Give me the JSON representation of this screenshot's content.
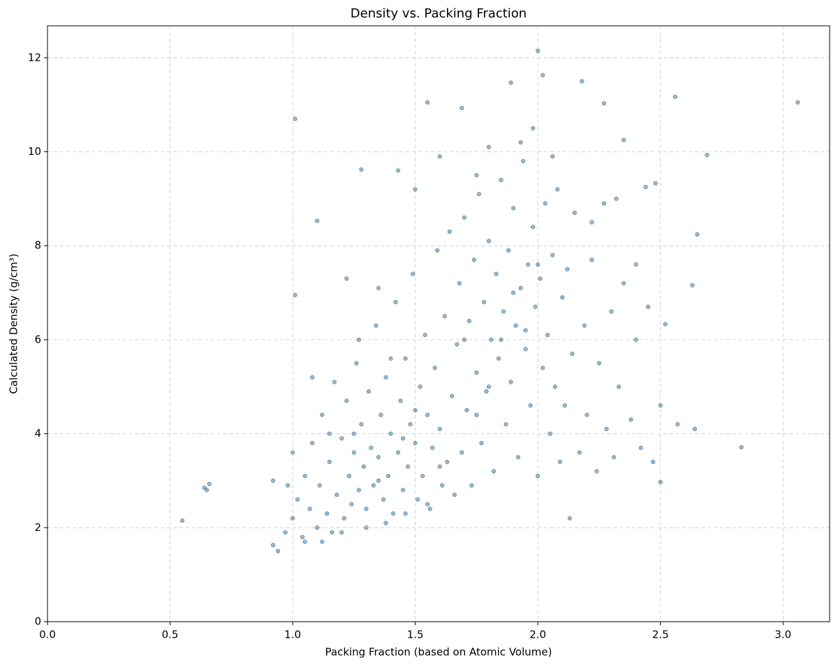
{
  "chart_data": {
    "type": "scatter",
    "title": "Density vs. Packing Fraction",
    "x_label": "Packing Fraction (based on Atomic Volume)",
    "y_label": "Calculated Density (g/cm³)",
    "color": "#1f77b4",
    "grid": true,
    "xlim": [
      0,
      3.19
    ],
    "ylim": [
      0,
      12.68
    ],
    "xticks": [
      {
        "value": 0,
        "label": "0.0"
      },
      0.5,
      {
        "value": 1,
        "label": "1.0"
      },
      1.5,
      {
        "value": 2,
        "label": "2.0"
      },
      2.5,
      {
        "value": 3,
        "label": "3.0"
      }
    ],
    "yticks": [
      0,
      2,
      4,
      6,
      8,
      10,
      12
    ],
    "x": [
      0.97,
      1.0,
      1.02,
      1.04,
      1.05,
      1.07,
      1.08,
      1.1,
      1.11,
      1.12,
      1.14,
      1.15,
      1.16,
      1.17,
      1.18,
      1.2,
      1.21,
      1.22,
      1.23,
      1.24,
      1.25,
      1.26,
      1.27,
      1.28,
      1.29,
      1.3,
      1.31,
      1.32,
      1.33,
      1.34,
      1.35,
      1.36,
      1.37,
      1.38,
      1.39,
      1.4,
      1.41,
      1.42,
      1.43,
      1.44,
      1.45,
      1.46,
      1.47,
      1.48,
      1.49,
      1.5,
      1.51,
      1.52,
      1.53,
      1.54,
      1.55,
      1.56,
      1.57,
      1.58,
      1.59,
      1.6,
      1.61,
      1.62,
      1.63,
      1.64,
      1.65,
      1.66,
      1.67,
      1.68,
      1.69,
      1.7,
      1.71,
      1.72,
      1.73,
      1.74,
      1.75,
      1.76,
      1.77,
      1.78,
      1.79,
      1.8,
      1.81,
      1.82,
      1.83,
      1.84,
      1.85,
      1.86,
      1.87,
      1.88,
      1.89,
      1.9,
      1.91,
      1.92,
      1.93,
      1.94,
      1.95,
      1.96,
      1.97,
      1.98,
      1.99,
      2.0,
      2.01,
      2.02,
      2.03,
      2.04,
      2.05,
      2.06,
      2.07,
      2.08,
      2.09,
      2.1,
      2.11,
      2.12,
      2.13,
      2.14,
      2.15,
      2.17,
      2.19,
      2.2,
      2.22,
      2.24,
      2.25,
      2.27,
      2.28,
      2.3,
      2.31,
      2.33,
      2.35,
      2.38,
      2.4,
      2.42,
      2.45,
      2.47,
      2.5,
      2.4,
      1.05,
      1.12,
      1.2,
      1.3,
      1.38,
      1.46,
      1.55,
      1.25,
      1.35,
      1.45,
      1.5,
      1.6,
      1.75,
      1.85,
      1.9,
      1.95,
      2.0,
      1.8,
      1.7,
      1.4,
      1.15,
      1.0,
      0.98,
      1.08,
      1.6,
      1.75,
      1.8,
      1.98,
      1.93,
      2.06,
      2.22,
      2.32,
      1.5,
      1.43,
      1.35,
      1.22,
      1.27,
      0.55,
      0.64,
      0.65,
      0.66,
      1.01,
      1.1,
      1.28,
      1.01,
      2.83,
      3.06,
      2.56,
      2.69,
      2.65,
      2.63,
      2.52,
      2.0,
      1.69,
      1.55,
      2.18,
      1.89,
      2.02,
      2.27,
      2.35,
      0.92,
      0.94,
      0.92,
      2.5,
      2.64,
      2.57,
      2.44,
      2.48
    ],
    "values": [
      1.9,
      2.2,
      2.6,
      1.8,
      3.1,
      2.4,
      3.8,
      2.0,
      2.9,
      4.4,
      2.3,
      3.4,
      1.9,
      5.1,
      2.7,
      3.9,
      2.2,
      4.7,
      3.1,
      2.5,
      3.6,
      5.5,
      2.8,
      4.2,
      3.3,
      2.4,
      4.9,
      3.7,
      2.9,
      6.3,
      3.5,
      4.4,
      2.6,
      5.2,
      3.1,
      4.0,
      2.3,
      6.8,
      3.6,
      4.7,
      2.8,
      5.6,
      3.3,
      4.2,
      7.4,
      3.8,
      2.6,
      5.0,
      3.1,
      6.1,
      4.4,
      2.4,
      3.7,
      5.4,
      7.9,
      4.1,
      2.9,
      6.5,
      3.4,
      8.3,
      4.8,
      2.7,
      5.9,
      7.2,
      3.6,
      8.6,
      4.5,
      6.4,
      2.9,
      7.7,
      5.3,
      9.1,
      3.8,
      6.8,
      4.9,
      8.1,
      6.0,
      3.2,
      7.4,
      5.6,
      9.4,
      6.6,
      4.2,
      7.9,
      5.1,
      8.8,
      6.3,
      3.5,
      7.1,
      9.8,
      5.8,
      7.6,
      4.6,
      8.4,
      6.7,
      3.1,
      7.3,
      5.4,
      8.9,
      6.1,
      4.0,
      7.8,
      5.0,
      9.2,
      3.4,
      6.9,
      4.6,
      7.5,
      2.2,
      5.7,
      8.7,
      3.6,
      6.3,
      4.4,
      7.7,
      3.2,
      5.5,
      8.9,
      4.1,
      6.6,
      3.5,
      5.0,
      7.2,
      4.3,
      6.0,
      3.7,
      6.7,
      3.4,
      4.6,
      7.6,
      1.7,
      1.7,
      1.9,
      2.0,
      2.1,
      2.3,
      2.5,
      4.0,
      3.0,
      3.9,
      4.5,
      3.3,
      4.4,
      6.0,
      7.0,
      6.2,
      7.6,
      5.0,
      6.0,
      5.6,
      4.0,
      3.6,
      2.9,
      5.2,
      9.9,
      9.5,
      10.1,
      10.5,
      10.2,
      9.9,
      8.5,
      9.0,
      9.2,
      9.6,
      7.1,
      7.3,
      6.0,
      2.15,
      2.85,
      2.8,
      2.93,
      10.7,
      8.53,
      9.62,
      6.95,
      3.71,
      11.05,
      11.17,
      9.93,
      8.24,
      7.16,
      6.33,
      12.15,
      10.93,
      11.05,
      11.5,
      11.47,
      11.63,
      11.03,
      10.25,
      3.0,
      1.5,
      1.63,
      2.97,
      4.1,
      4.2,
      9.25,
      9.33
    ]
  }
}
